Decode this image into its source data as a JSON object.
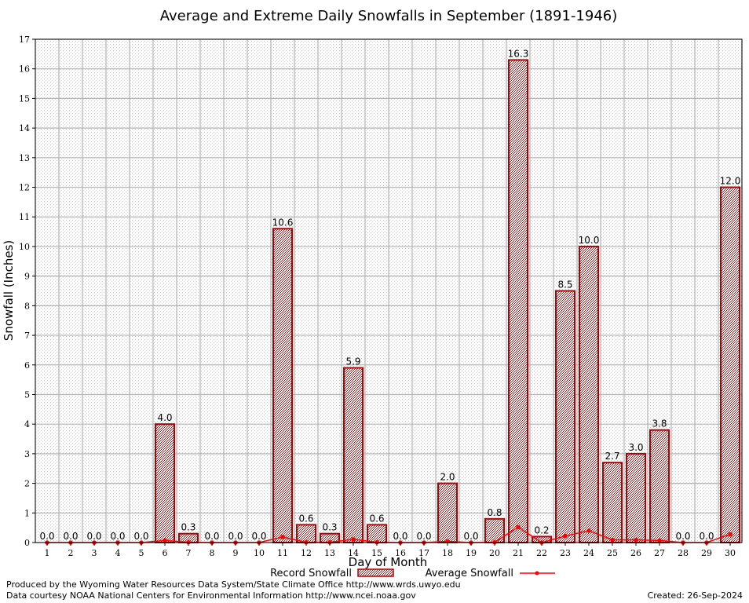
{
  "chart_data": {
    "type": "bar",
    "title": "Average and Extreme Daily Snowfalls in September (1891-1946)",
    "xlabel": "Day of Month",
    "ylabel": "Snowfall (Inches)",
    "ylim": [
      0,
      17
    ],
    "yticks": [
      "0",
      "1",
      "2",
      "3",
      "4",
      "5",
      "6",
      "7",
      "8",
      "9",
      "10",
      "11",
      "12",
      "13",
      "14",
      "15",
      "16",
      "17"
    ],
    "categories": [
      "1",
      "2",
      "3",
      "4",
      "5",
      "6",
      "7",
      "8",
      "9",
      "10",
      "11",
      "12",
      "13",
      "14",
      "15",
      "16",
      "17",
      "18",
      "19",
      "20",
      "21",
      "22",
      "23",
      "24",
      "25",
      "26",
      "27",
      "28",
      "29",
      "30"
    ],
    "grid": true,
    "legend_position": "bottom",
    "series": [
      {
        "name": "Record Snowfall",
        "kind": "bar",
        "color": "#b30000",
        "values": [
          0.0,
          0.0,
          0.0,
          0.0,
          0.0,
          4.0,
          0.3,
          0.0,
          0.0,
          0.0,
          10.6,
          0.6,
          0.3,
          5.9,
          0.6,
          0.0,
          0.0,
          2.0,
          0.0,
          0.8,
          16.3,
          0.2,
          8.5,
          10.0,
          2.7,
          3.0,
          3.8,
          0.0,
          0.0,
          12.0
        ],
        "labels": [
          "0.0",
          "0.0",
          "0.0",
          "0.0",
          "0.0",
          "4.0",
          "0.3",
          "0.0",
          "0.0",
          "0.0",
          "10.6",
          "0.6",
          "0.3",
          "5.9",
          "0.6",
          "0.0",
          "0.0",
          "2.0",
          "0.0",
          "0.8",
          "16.3",
          "0.2",
          "8.5",
          "10.0",
          "2.7",
          "3.0",
          "3.8",
          "0.0",
          "0.0",
          "12.0"
        ]
      },
      {
        "name": "Average Snowfall",
        "kind": "line",
        "color": "#ff0000",
        "values": [
          0.0,
          0.0,
          0.0,
          0.0,
          0.0,
          0.07,
          0.01,
          0.0,
          0.0,
          0.0,
          0.19,
          0.01,
          0.01,
          0.11,
          0.01,
          0.0,
          0.0,
          0.04,
          0.0,
          0.01,
          0.52,
          0.0,
          0.22,
          0.4,
          0.09,
          0.09,
          0.07,
          0.0,
          0.0,
          0.28
        ]
      }
    ]
  },
  "footer": {
    "produced_by": "Produced by the Wyoming Water Resources Data System/State Climate Office http://www.wrds.uwyo.edu",
    "courtesy": "Data courtesy NOAA National Centers for Environmental Information http://www.ncei.noaa.gov",
    "created": "Created:  26-Sep-2024"
  }
}
